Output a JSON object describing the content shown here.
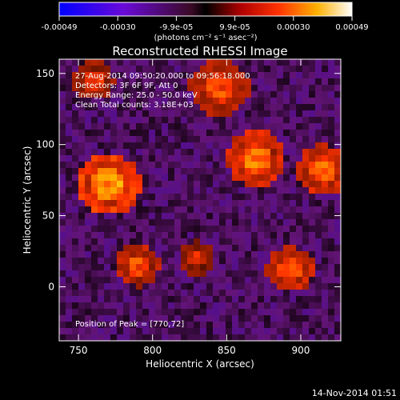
{
  "figure": {
    "colorbar": {
      "ticks": [
        "-0.00049",
        "-0.00030",
        "-9.9e-05",
        "9.9e-05",
        "0.00030",
        "0.00049"
      ],
      "unit_label": "(photons cm⁻² s⁻¹ asec⁻²)",
      "range": [
        -0.00049,
        0.00049
      ]
    },
    "timestamp": "14-Nov-2014 01:51"
  },
  "chart_data": {
    "type": "heatmap",
    "title": "Reconstructed RHESSI Image",
    "xlabel": "Heliocentric X (arcsec)",
    "ylabel": "Heliocentric Y (arcsec)",
    "xlim": [
      737,
      927
    ],
    "ylim": [
      -38,
      160
    ],
    "xticks": [
      750,
      800,
      850,
      900
    ],
    "yticks": [
      0,
      50,
      100,
      150
    ],
    "annotations": [
      "27-Aug-2014 09:50:20.000 to 09:56:18.000",
      "Detectors: 3F 6F 9F, Att 0",
      "Energy Range: 25.0 - 50.0 keV",
      "Clean    Total counts: 3.18E+03"
    ],
    "peak_label": "Position of Peak = [770,72]",
    "peak_position": [
      770,
      72
    ],
    "bright_sources": [
      {
        "x": 770,
        "y": 72,
        "radius": 22,
        "level": 1.0
      },
      {
        "x": 870,
        "y": 90,
        "radius": 20,
        "level": 0.85
      },
      {
        "x": 915,
        "y": 82,
        "radius": 18,
        "level": 0.8
      },
      {
        "x": 845,
        "y": 140,
        "radius": 20,
        "level": 0.7
      },
      {
        "x": 790,
        "y": 15,
        "radius": 15,
        "level": 0.7
      },
      {
        "x": 893,
        "y": 12,
        "radius": 16,
        "level": 0.75
      },
      {
        "x": 830,
        "y": 20,
        "radius": 12,
        "level": 0.55
      },
      {
        "x": 760,
        "y": 145,
        "radius": 14,
        "level": 0.6
      }
    ]
  }
}
